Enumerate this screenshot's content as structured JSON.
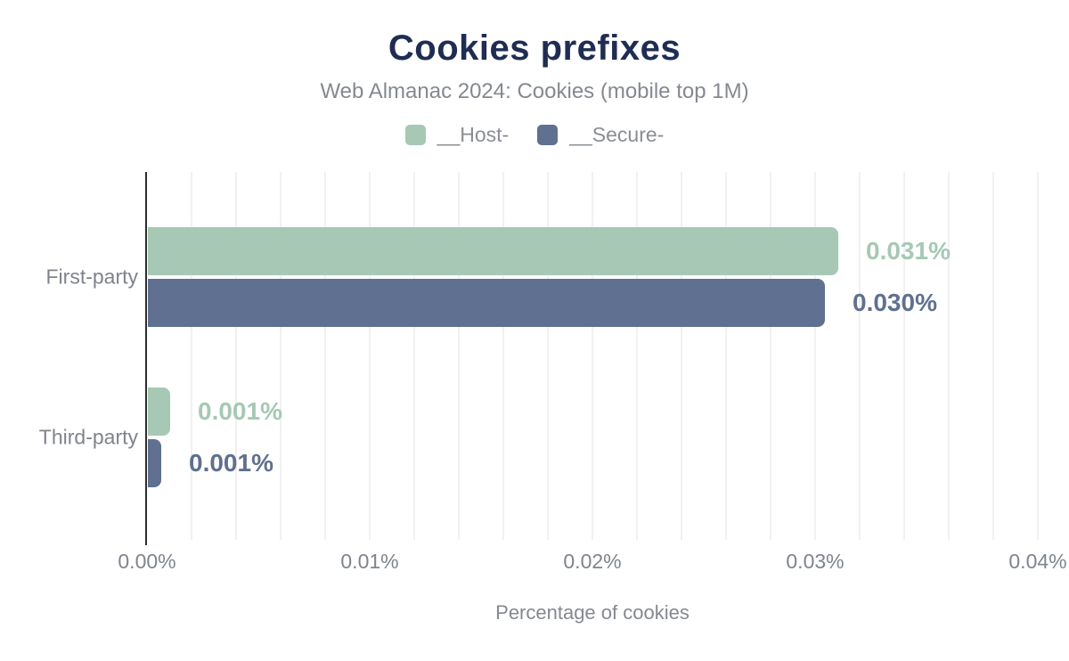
{
  "chart_data": {
    "type": "bar",
    "orientation": "horizontal",
    "title": "Cookies prefixes",
    "subtitle": "Web Almanac 2024: Cookies (mobile top 1M)",
    "xlabel": "Percentage of cookies",
    "ylabel": "",
    "categories": [
      "First-party",
      "Third-party"
    ],
    "series": [
      {
        "name": "__Host-",
        "color": "#a6c8b5",
        "values": [
          0.031,
          0.001
        ],
        "value_labels": [
          "0.031%",
          "0.001%"
        ],
        "bar_values": [
          0.031,
          0.001
        ]
      },
      {
        "name": "__Secure-",
        "color": "#5f7090",
        "values": [
          0.03,
          0.001
        ],
        "value_labels": [
          "0.030%",
          "0.001%"
        ],
        "bar_values": [
          0.0304,
          0.0006
        ]
      }
    ],
    "x_axis": {
      "min": 0,
      "max": 0.04,
      "major_step": 0.01,
      "minor_step": 0.002,
      "tick_labels": [
        "0.00%",
        "0.01%",
        "0.02%",
        "0.03%",
        "0.04%"
      ],
      "unit": "%"
    },
    "legend_position": "top",
    "grid": true
  },
  "colors": {
    "title": "#1f2d52",
    "subtitle": "#85898f",
    "axis_labels": "#7f848c",
    "legend_text": "#8a8e94",
    "gridline": "#f1f1f3",
    "axis_line": "#2d2d2d",
    "background": "#ffffff"
  }
}
